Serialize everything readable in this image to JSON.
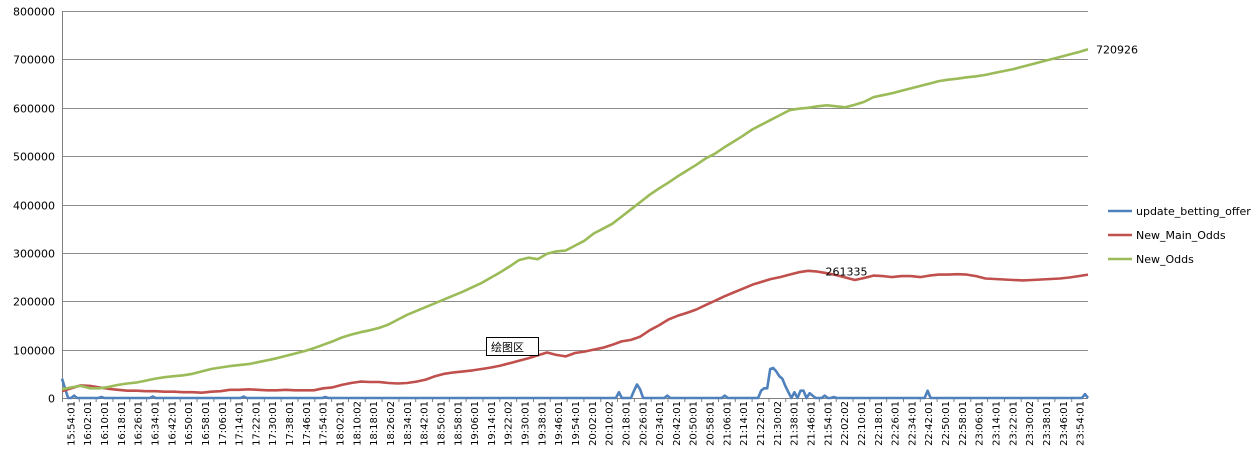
{
  "chart_data": {
    "type": "line",
    "title": "",
    "xlabel": "",
    "ylabel": "",
    "ylim": [
      0,
      800000
    ],
    "yticks": [
      0,
      100000,
      200000,
      300000,
      400000,
      500000,
      600000,
      700000,
      800000
    ],
    "grid": true,
    "legend_position": "right",
    "x_tick_labels": [
      "15:54:01",
      "16:02:01",
      "16:10:01",
      "16:18:01",
      "16:26:01",
      "16:34:01",
      "16:42:01",
      "16:50:01",
      "16:58:01",
      "17:06:01",
      "17:14:01",
      "17:22:01",
      "17:30:01",
      "17:38:01",
      "17:46:01",
      "17:54:01",
      "18:02:01",
      "18:10:02",
      "18:18:01",
      "18:26:02",
      "18:34:01",
      "18:42:01",
      "18:50:01",
      "18:58:01",
      "19:06:01",
      "19:14:01",
      "19:22:02",
      "19:30:01",
      "19:38:01",
      "19:46:01",
      "19:54:01",
      "20:02:01",
      "20:10:02",
      "20:18:01",
      "20:26:01",
      "20:34:01",
      "20:42:01",
      "20:50:01",
      "20:58:01",
      "21:06:01",
      "21:14:01",
      "21:22:01",
      "21:30:02",
      "21:38:01",
      "21:46:01",
      "21:54:01",
      "22:02:02",
      "22:10:01",
      "22:18:01",
      "22:26:01",
      "22:34:01",
      "22:42:01",
      "22:50:01",
      "22:58:01",
      "23:06:01",
      "23:14:01",
      "23:22:01",
      "23:30:02",
      "23:38:01",
      "23:46:01",
      "23:54:01"
    ],
    "series": [
      {
        "name": "update_betting_offer",
        "color": "#4f81bd",
        "values": [
          40000,
          20000,
          0,
          0,
          5000,
          0,
          0,
          0,
          0,
          0,
          0,
          0,
          0,
          2000,
          0,
          0,
          0,
          0,
          0,
          0,
          0,
          0,
          0,
          0,
          0,
          0,
          0,
          0,
          0,
          0,
          3000,
          0,
          0,
          0,
          0,
          0,
          0,
          0,
          0,
          0,
          0,
          0,
          0,
          0,
          0,
          0,
          0,
          0,
          0,
          0,
          0,
          0,
          0,
          0,
          0,
          0,
          0,
          0,
          0,
          0,
          3000,
          0,
          0,
          0,
          0,
          0,
          0,
          0,
          0,
          0,
          0,
          0,
          0,
          0,
          0,
          0,
          0,
          0,
          0,
          0,
          0,
          0,
          0,
          0,
          0,
          0,
          0,
          2000,
          0,
          0,
          0,
          0,
          0,
          0,
          0,
          0,
          0,
          0,
          0,
          0,
          0,
          0,
          0,
          0,
          0,
          0,
          0,
          0,
          0,
          0,
          0,
          0,
          0,
          0,
          0,
          0,
          0,
          0,
          0,
          0,
          0,
          0,
          0,
          0,
          0,
          0,
          0,
          0,
          0,
          0,
          0,
          0,
          0,
          0,
          0,
          0,
          0,
          0,
          0,
          0,
          0,
          0,
          0,
          0,
          0,
          0,
          0,
          0,
          0,
          0,
          0,
          0,
          0,
          0,
          0,
          0,
          0,
          0,
          0,
          0,
          0,
          0,
          0,
          0,
          0,
          0,
          0,
          0,
          0,
          0,
          0,
          0,
          0,
          0,
          0,
          0,
          0,
          0,
          0,
          0,
          0,
          0,
          0,
          0,
          12000,
          0,
          0,
          0,
          0,
          15000,
          28000,
          18000,
          0,
          0,
          0,
          0,
          0,
          0,
          0,
          0,
          5000,
          0,
          0,
          0,
          0,
          0,
          0,
          0,
          0,
          0,
          0,
          0,
          0,
          0,
          0,
          0,
          0,
          0,
          0,
          5000,
          0,
          0,
          0,
          0,
          0,
          0,
          0,
          0,
          0,
          0,
          0,
          15000,
          20000,
          20000,
          60000,
          62000,
          55000,
          45000,
          40000,
          25000,
          12000,
          0,
          12000,
          0,
          15000,
          15000,
          0,
          10000,
          5000,
          0,
          0,
          0,
          5000,
          0,
          0,
          2000,
          0,
          0,
          0,
          0,
          0,
          0,
          0,
          0,
          0,
          0,
          0,
          0,
          0,
          0,
          0,
          0,
          0,
          0,
          0,
          0,
          0,
          0,
          0,
          0,
          0,
          0,
          0,
          0,
          0,
          0,
          15000,
          0,
          0,
          0,
          0,
          0,
          0,
          0,
          0,
          0,
          0,
          0,
          0,
          0,
          0,
          0,
          0,
          0,
          0,
          0,
          0,
          0,
          0,
          0,
          0,
          0,
          0,
          0,
          0,
          0,
          0,
          0,
          0,
          0,
          0,
          0,
          0,
          0,
          0,
          0,
          0,
          0,
          0,
          0,
          0,
          0,
          0,
          0,
          0,
          0,
          0,
          0,
          8000,
          0
        ]
      },
      {
        "name": "New_Main_Odds",
        "color": "#c0504d",
        "values": [
          14000,
          20000,
          26000,
          25000,
          22000,
          19000,
          17000,
          15000,
          15000,
          14000,
          14000,
          13000,
          13000,
          12000,
          12000,
          11000,
          13000,
          14000,
          17000,
          17000,
          18000,
          17000,
          16000,
          16000,
          17000,
          16000,
          16000,
          16000,
          20000,
          22000,
          27000,
          31000,
          34000,
          33000,
          33000,
          31000,
          30000,
          31000,
          34000,
          38000,
          45000,
          50000,
          53000,
          55000,
          57000,
          60000,
          63000,
          67000,
          72000,
          77000,
          82000,
          88000,
          94000,
          89000,
          86000,
          93000,
          96000,
          100000,
          104000,
          110000,
          117000,
          120000,
          127000,
          140000,
          150000,
          162000,
          170000,
          176000,
          183000,
          192000,
          201000,
          210000,
          218000,
          226000,
          234000,
          240000,
          246000,
          250000,
          255000,
          260000,
          263000,
          261335,
          258000,
          254000,
          249000,
          244000,
          248000,
          253000,
          252000,
          250000,
          252000,
          252000,
          250000,
          253000,
          255000,
          255000,
          256000,
          255000,
          252000,
          247000,
          246000,
          245000,
          244000,
          243000,
          244000,
          245000,
          246000,
          247000,
          249000,
          252000,
          255000
        ]
      },
      {
        "name": "New_Odds",
        "color": "#9bbb59",
        "values": [
          18000,
          22000,
          25000,
          20000,
          20000,
          23000,
          27000,
          30000,
          32000,
          36000,
          40000,
          43000,
          45000,
          47000,
          50000,
          55000,
          60000,
          63000,
          66000,
          68000,
          70000,
          74000,
          78000,
          82000,
          87000,
          92000,
          97000,
          103000,
          110000,
          117000,
          125000,
          131000,
          136000,
          140000,
          145000,
          152000,
          162000,
          172000,
          180000,
          188000,
          196000,
          204000,
          212000,
          220000,
          229000,
          238000,
          249000,
          260000,
          272000,
          285000,
          290000,
          287000,
          298000,
          303000,
          305000,
          315000,
          325000,
          340000,
          350000,
          360000,
          375000,
          390000,
          405000,
          420000,
          433000,
          445000,
          458000,
          470000,
          482000,
          495000,
          505000,
          518000,
          530000,
          542000,
          555000,
          565000,
          575000,
          585000,
          595000,
          598000,
          600000,
          603000,
          605000,
          603000,
          601000,
          606000,
          612000,
          622000,
          626000,
          630000,
          635000,
          640000,
          645000,
          650000,
          655000,
          658000,
          660000,
          663000,
          665000,
          668000,
          672000,
          676000,
          680000,
          685000,
          690000,
          695000,
          700000,
          705000,
          710000,
          715000,
          720926
        ]
      }
    ],
    "annotations": [
      {
        "series": "New_Odds",
        "text": "720926"
      },
      {
        "series": "New_Main_Odds",
        "text": "261335"
      }
    ],
    "plot_area_label": "绘图区"
  }
}
